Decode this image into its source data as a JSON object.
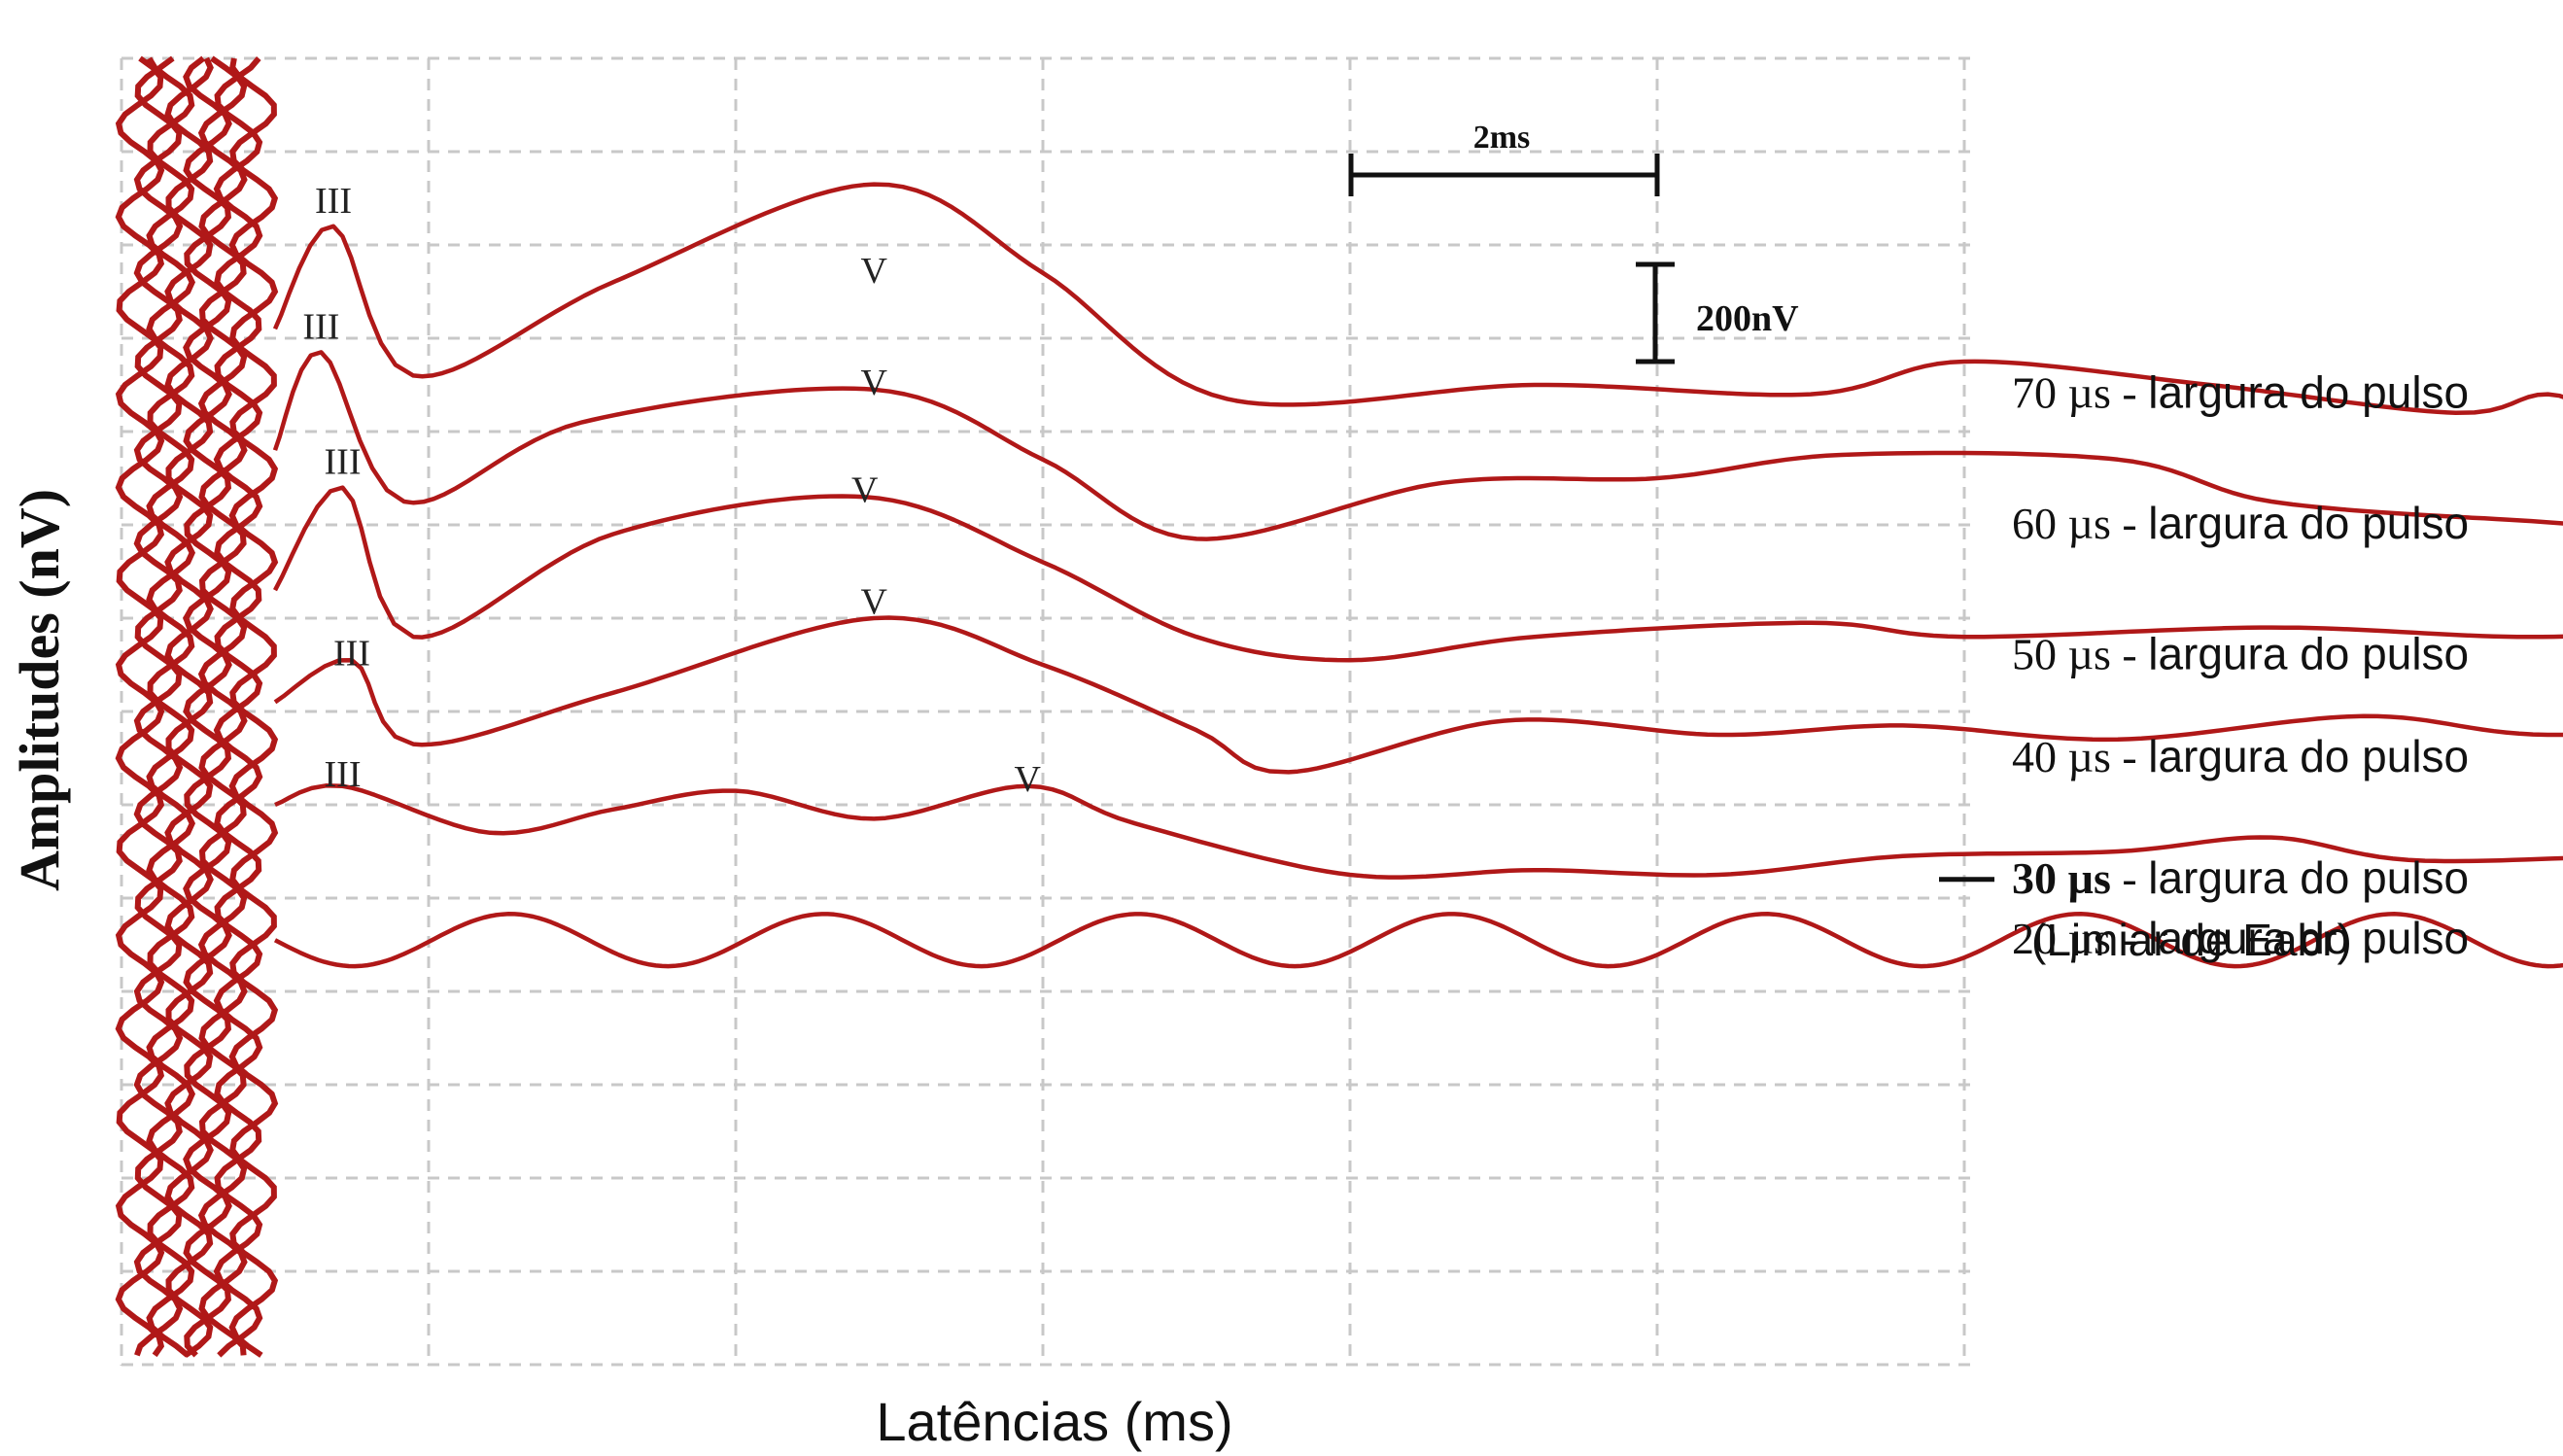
{
  "chart_data": {
    "type": "line",
    "xlabel": "Latências (ms)",
    "ylabel": "Amplitudes (nV)",
    "scale_bars": {
      "time_label": "2ms",
      "amplitude_label": "200nV"
    },
    "colors": {
      "trace": "#b01818",
      "grid": "#c8c8c8",
      "text": "#111111"
    },
    "series": [
      {
        "level": "70",
        "unit": "µs",
        "dash": "-",
        "desc": "largura do pulso",
        "sub": "",
        "baseline": 3.6,
        "peaks": [
          {
            "label": "III",
            "x": 0.69,
            "y": 1.8
          },
          {
            "label": "V",
            "x": 2.45,
            "y": 2.55
          }
        ],
        "points": [
          [
            0.5,
            2.9
          ],
          [
            0.69,
            1.8
          ],
          [
            0.95,
            3.4
          ],
          [
            1.6,
            2.4
          ],
          [
            2.45,
            1.35
          ],
          [
            3.0,
            2.3
          ],
          [
            3.6,
            3.65
          ],
          [
            4.6,
            3.5
          ],
          [
            5.5,
            3.6
          ],
          [
            6.0,
            3.25
          ],
          [
            6.8,
            3.5
          ],
          [
            7.6,
            3.8
          ],
          [
            7.9,
            3.6
          ],
          [
            8.2,
            3.85
          ],
          [
            9.0,
            3.6
          ],
          [
            9.8,
            3.75
          ],
          [
            10.2,
            3.55
          ],
          [
            11.7,
            3.45
          ]
        ]
      },
      {
        "level": "60",
        "unit": "µs",
        "dash": "-",
        "desc": "largura do pulso",
        "sub": "",
        "baseline": 5.0,
        "peaks": [
          {
            "label": "III",
            "x": 0.65,
            "y": 3.15
          },
          {
            "label": "V",
            "x": 2.45,
            "y": 3.75
          }
        ],
        "points": [
          [
            0.5,
            4.2
          ],
          [
            0.65,
            3.15
          ],
          [
            0.92,
            4.75
          ],
          [
            1.5,
            3.9
          ],
          [
            2.45,
            3.55
          ],
          [
            3.0,
            4.3
          ],
          [
            3.5,
            5.15
          ],
          [
            4.3,
            4.55
          ],
          [
            5.0,
            4.5
          ],
          [
            5.6,
            4.25
          ],
          [
            6.5,
            4.3
          ],
          [
            7.0,
            4.75
          ],
          [
            7.8,
            4.95
          ],
          [
            8.3,
            5.0
          ],
          [
            9.2,
            4.7
          ],
          [
            10.2,
            4.75
          ],
          [
            11.0,
            4.35
          ],
          [
            11.7,
            4.25
          ]
        ]
      },
      {
        "level": "50",
        "unit": "µs",
        "dash": "-",
        "desc": "largura do pulso",
        "sub": "",
        "baseline": 6.4,
        "peaks": [
          {
            "label": "III",
            "x": 0.72,
            "y": 4.6
          },
          {
            "label": "V",
            "x": 2.42,
            "y": 4.9
          }
        ],
        "points": [
          [
            0.5,
            5.7
          ],
          [
            0.72,
            4.6
          ],
          [
            0.95,
            6.2
          ],
          [
            1.6,
            5.1
          ],
          [
            2.42,
            4.7
          ],
          [
            3.0,
            5.4
          ],
          [
            3.5,
            6.2
          ],
          [
            4.0,
            6.45
          ],
          [
            4.6,
            6.2
          ],
          [
            5.5,
            6.05
          ],
          [
            6.0,
            6.2
          ],
          [
            7.0,
            6.1
          ],
          [
            7.8,
            6.2
          ],
          [
            8.5,
            6.15
          ],
          [
            9.5,
            6.25
          ],
          [
            10.0,
            5.95
          ],
          [
            10.5,
            5.7
          ],
          [
            11.0,
            5.55
          ],
          [
            11.7,
            5.2
          ]
        ]
      },
      {
        "level": "40",
        "unit": "µs",
        "dash": "-",
        "desc": "largura do pulso",
        "sub": "",
        "baseline": 7.5,
        "peaks": [
          {
            "label": "III",
            "x": 0.75,
            "y": 6.65
          },
          {
            "label": "V",
            "x": 2.45,
            "y": 6.1
          }
        ],
        "points": [
          [
            0.5,
            6.9
          ],
          [
            0.75,
            6.45
          ],
          [
            0.95,
            7.35
          ],
          [
            1.6,
            6.8
          ],
          [
            2.45,
            6.0
          ],
          [
            3.0,
            6.5
          ],
          [
            3.5,
            7.2
          ],
          [
            3.8,
            7.65
          ],
          [
            4.5,
            7.1
          ],
          [
            5.2,
            7.25
          ],
          [
            5.8,
            7.15
          ],
          [
            6.5,
            7.3
          ],
          [
            7.3,
            7.05
          ],
          [
            7.9,
            7.25
          ],
          [
            8.8,
            7.1
          ],
          [
            9.5,
            7.05
          ],
          [
            10.1,
            6.85
          ],
          [
            10.6,
            7.3
          ],
          [
            11.2,
            7.2
          ],
          [
            11.7,
            7.3
          ]
        ]
      },
      {
        "level": "30",
        "unit": "µs",
        "dash": "-",
        "desc": "largura do pulso",
        "sub": "(Limiar de Eabr)",
        "baseline": 8.8,
        "peaks": [
          {
            "label": "III",
            "x": 0.72,
            "y": 7.95
          },
          {
            "label": "V",
            "x": 2.95,
            "y": 8.0
          }
        ],
        "points": [
          [
            0.5,
            8.0
          ],
          [
            0.72,
            7.8
          ],
          [
            1.2,
            8.3
          ],
          [
            1.6,
            8.05
          ],
          [
            2.0,
            7.85
          ],
          [
            2.45,
            8.15
          ],
          [
            2.95,
            7.8
          ],
          [
            3.3,
            8.2
          ],
          [
            4.0,
            8.75
          ],
          [
            4.6,
            8.7
          ],
          [
            5.2,
            8.75
          ],
          [
            5.8,
            8.55
          ],
          [
            6.5,
            8.5
          ],
          [
            7.0,
            8.35
          ],
          [
            7.5,
            8.6
          ],
          [
            8.5,
            8.5
          ],
          [
            9.4,
            8.45
          ],
          [
            10.0,
            8.4
          ],
          [
            10.6,
            8.2
          ],
          [
            11.0,
            8.0
          ],
          [
            11.7,
            8.35
          ]
        ]
      },
      {
        "level": "20",
        "unit": "µs",
        "dash": "-",
        "desc": "largura do pulso",
        "sub": "",
        "baseline": 9.45,
        "peaks": [],
        "points": [
          [
            0.5,
            9.45
          ],
          [
            11.7,
            9.45
          ]
        ]
      }
    ]
  }
}
